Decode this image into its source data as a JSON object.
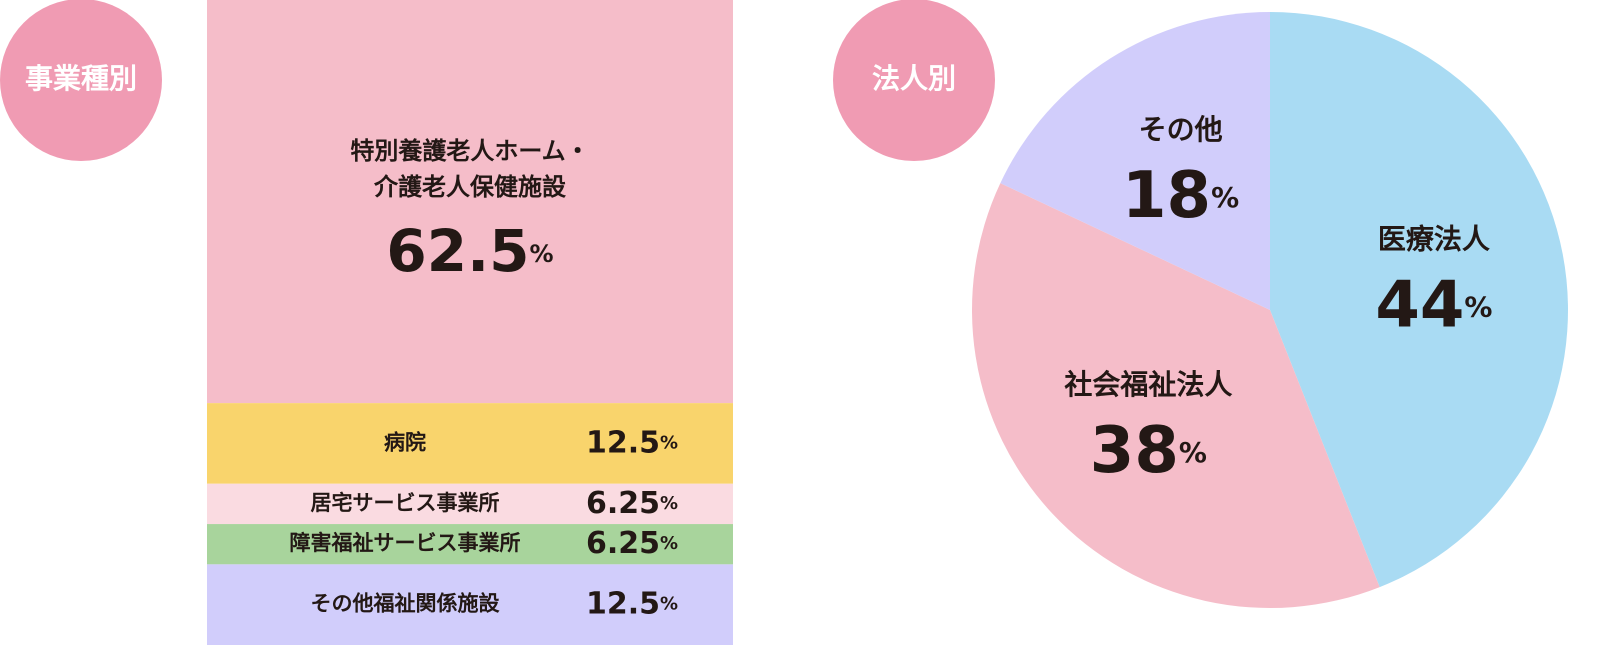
{
  "chart_data": [
    {
      "type": "stacked-bar",
      "title": "事業種別",
      "categories": [
        "特別養護老人ホーム・\n介護老人保健施設",
        "病院",
        "居宅サービス事業所",
        "障害福祉サービス事業所",
        "その他福祉関係施設"
      ],
      "values": [
        62.5,
        12.5,
        6.25,
        6.25,
        12.5
      ],
      "value_labels": [
        "62.5%",
        "12.5%",
        "6.25%",
        "6.25%",
        "12.5%"
      ],
      "colors": [
        "#f5bdc9",
        "#f9d46c",
        "#fadbe1",
        "#a8d49c",
        "#d1cdfb"
      ]
    },
    {
      "type": "pie",
      "title": "法人別",
      "categories": [
        "医療法人",
        "社会福祉法人",
        "その他"
      ],
      "values": [
        44,
        38,
        18
      ],
      "value_labels": [
        "44%",
        "38%",
        "18%"
      ],
      "colors": [
        "#a9dbf3",
        "#f5bdc9",
        "#d1cdfb"
      ]
    }
  ]
}
